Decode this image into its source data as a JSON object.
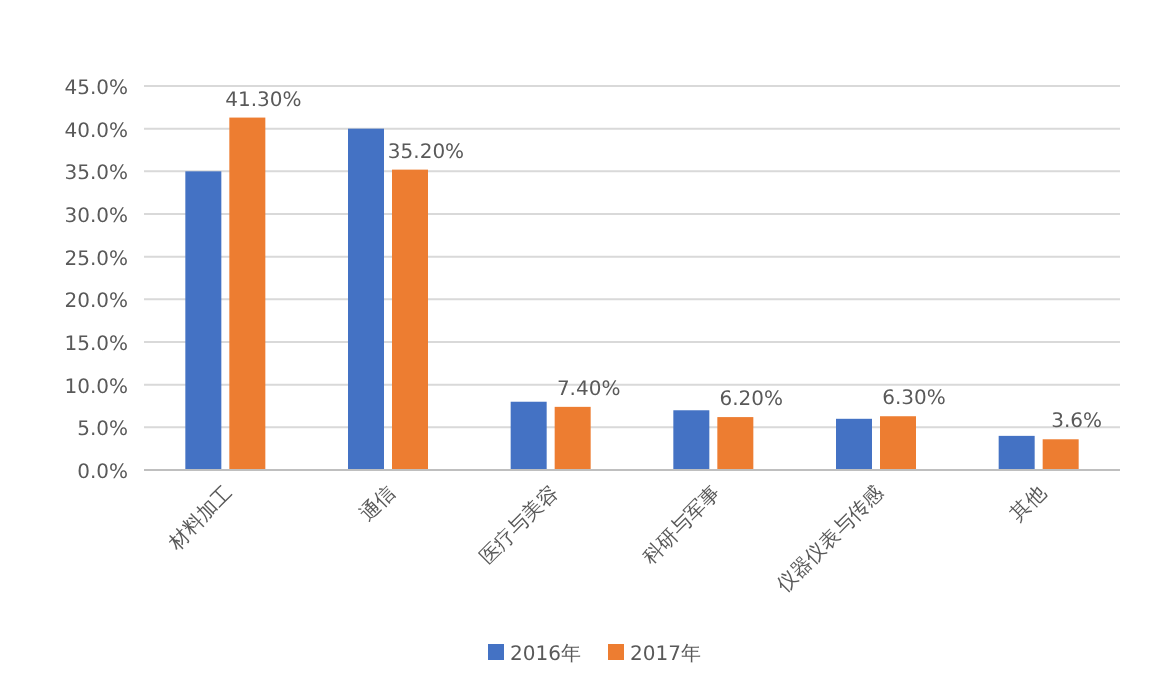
{
  "chart_data": {
    "type": "bar",
    "categories": [
      "材料加工",
      "通信",
      "医疗与美容",
      "科研与军事",
      "仪器仪表与传感",
      "其他"
    ],
    "series": [
      {
        "name": "2016年",
        "color": "#4472c4",
        "values": [
          35,
          40,
          8,
          7,
          6,
          4
        ]
      },
      {
        "name": "2017年",
        "color": "#ed7d31",
        "values": [
          41.3,
          35.2,
          7.4,
          6.2,
          6.3,
          3.6
        ],
        "value_labels": [
          "41.30%",
          "35.20%",
          "7.40%",
          "6.20%",
          "6.30%",
          "3.6%"
        ]
      }
    ],
    "ylim": [
      0,
      45
    ],
    "yticks": [
      {
        "value": 0,
        "label": "0.0%"
      },
      {
        "value": 5,
        "label": "5.0%"
      },
      {
        "value": 10,
        "label": "10.0%"
      },
      {
        "value": 15,
        "label": "15.0%"
      },
      {
        "value": 20,
        "label": "20.0%"
      },
      {
        "value": 25,
        "label": "25.0%"
      },
      {
        "value": 30,
        "label": "30.0%"
      },
      {
        "value": 35,
        "label": "35.0%"
      },
      {
        "value": 40,
        "label": "40.0%"
      },
      {
        "value": 45,
        "label": "45.0%"
      }
    ],
    "grid": "y",
    "legend": "bottom"
  }
}
